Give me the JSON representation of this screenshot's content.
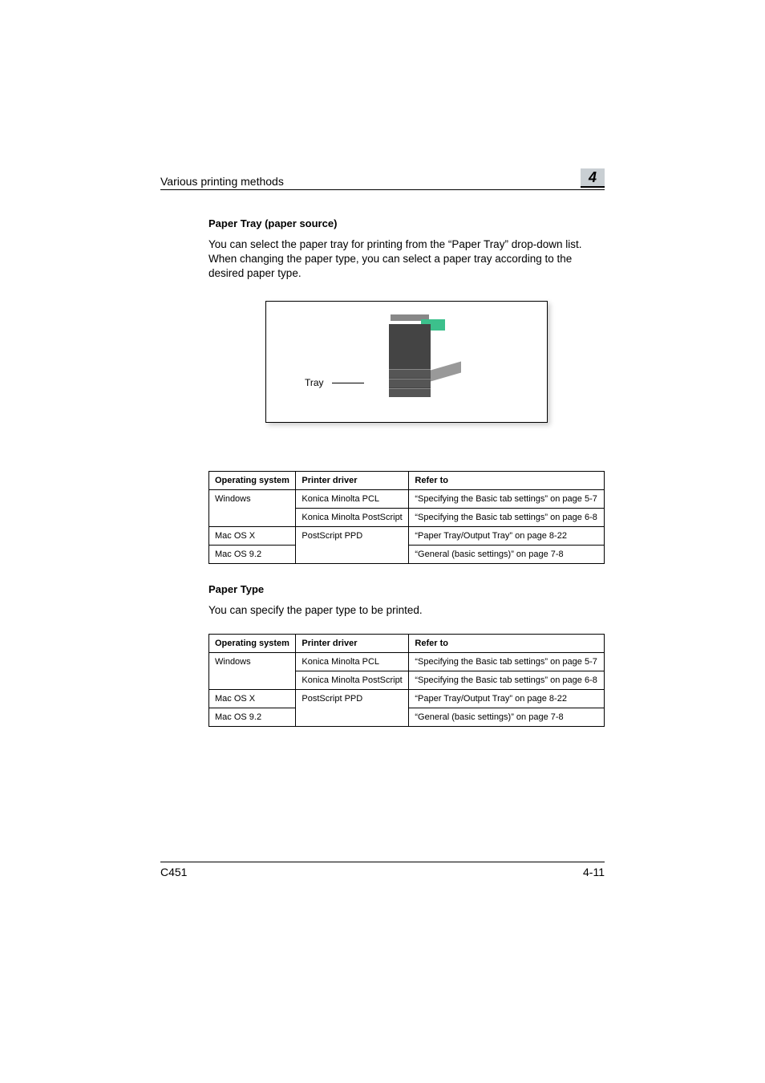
{
  "header": {
    "left": "Various printing methods",
    "chapter": "4"
  },
  "section1": {
    "title": "Paper Tray (paper source)",
    "body": "You can select the paper tray for printing from the “Paper Tray” drop-down list. When changing the paper type, you can select a paper tray according to the desired paper type."
  },
  "figure": {
    "label": "Tray"
  },
  "table_headers": {
    "col1": "Operating system",
    "col2": "Printer driver",
    "col3": "Refer to"
  },
  "table1": {
    "r1c1": "Windows",
    "r1c2": "Konica Minolta PCL",
    "r1c3": "“Specifying the Basic tab settings” on page 5-7",
    "r2c2": "Konica Minolta PostScript",
    "r2c3": "“Specifying the Basic tab settings” on page 6-8",
    "r3c1": "Mac OS X",
    "r3c2": "PostScript PPD",
    "r3c3": "“Paper Tray/Output Tray” on page 8-22",
    "r4c1": "Mac OS 9.2",
    "r4c3": "“General (basic settings)” on page 7-8"
  },
  "section2": {
    "title": "Paper Type",
    "body": "You can specify the paper type to be printed."
  },
  "table2": {
    "r1c1": "Windows",
    "r1c2": "Konica Minolta PCL",
    "r1c3": "“Specifying the Basic tab settings” on page 5-7",
    "r2c2": "Konica Minolta PostScript",
    "r2c3": "“Specifying the Basic tab settings” on page 6-8",
    "r3c1": "Mac OS X",
    "r3c2": "PostScript PPD",
    "r3c3": "“Paper Tray/Output Tray” on page 8-22",
    "r4c1": "Mac OS 9.2",
    "r4c3": "“General (basic settings)” on page 7-8"
  },
  "footer": {
    "left": "C451",
    "right": "4-11"
  }
}
